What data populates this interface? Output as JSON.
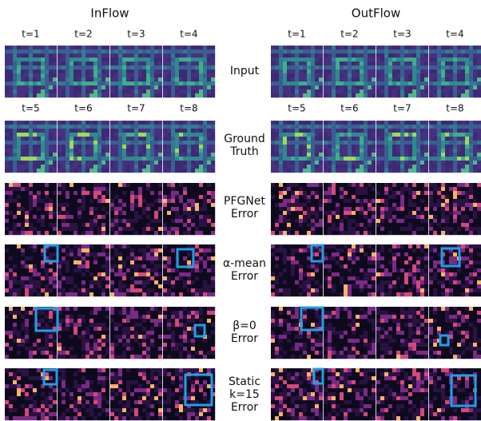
{
  "groups": [
    {
      "title": "InFlow",
      "time_labels_top": [
        "t=1",
        "t=2",
        "t=3",
        "t=4"
      ],
      "time_labels_bottom": [
        "t=5",
        "t=6",
        "t=7",
        "t=8"
      ]
    },
    {
      "title": "OutFlow",
      "time_labels_top": [
        "t=1",
        "t=2",
        "t=3",
        "t=4"
      ],
      "time_labels_bottom": [
        "t=5",
        "t=6",
        "t=7",
        "t=8"
      ]
    }
  ],
  "rows": [
    {
      "label": [
        "Input"
      ]
    },
    {
      "label": [
        "Ground",
        "Truth"
      ]
    },
    {
      "label": [
        "PFGNet",
        "Error"
      ]
    },
    {
      "label": [
        "α-mean",
        "Error"
      ]
    },
    {
      "label": [
        "β=0",
        "Error"
      ]
    },
    {
      "label": [
        "Static",
        "k=15",
        "Error"
      ]
    }
  ]
}
